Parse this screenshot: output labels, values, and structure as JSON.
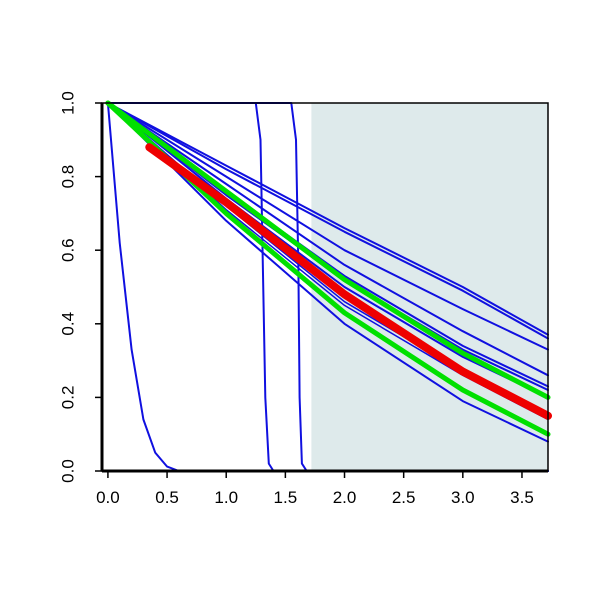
{
  "chart_data": {
    "type": "line",
    "title": "",
    "xlabel": "",
    "ylabel": "",
    "xlim": [
      -0.05,
      3.72
    ],
    "ylim": [
      0.0,
      1.0
    ],
    "grid": false,
    "legend": "none",
    "x_ticks": [
      "0.0",
      "0.5",
      "1.0",
      "1.5",
      "2.0",
      "2.5",
      "3.0",
      "3.5"
    ],
    "y_ticks": [
      "0.0",
      "0.2",
      "0.4",
      "0.6",
      "0.8",
      "1.0"
    ],
    "shaded_region": {
      "x_from": 1.72,
      "x_to": 3.72,
      "color": "#deeaeb"
    },
    "colors": {
      "blue": "#1010e0",
      "green": "#00e000",
      "red": "#ee0000",
      "shade": "#deeaeb"
    },
    "series": [
      {
        "color": "blue",
        "width": 2,
        "points": [
          [
            0,
            1.0
          ],
          [
            0.1,
            0.62
          ],
          [
            0.2,
            0.33
          ],
          [
            0.3,
            0.14
          ],
          [
            0.4,
            0.05
          ],
          [
            0.5,
            0.012
          ],
          [
            0.6,
            0.0
          ],
          [
            3.72,
            0.0
          ]
        ]
      },
      {
        "color": "blue",
        "width": 2,
        "points": [
          [
            0,
            1.0
          ],
          [
            1.25,
            1.0
          ],
          [
            1.29,
            0.9
          ],
          [
            1.31,
            0.55
          ],
          [
            1.33,
            0.2
          ],
          [
            1.36,
            0.02
          ],
          [
            1.4,
            0.0
          ],
          [
            3.72,
            0.0
          ]
        ]
      },
      {
        "color": "blue",
        "width": 2,
        "points": [
          [
            0,
            1.0
          ],
          [
            1.55,
            1.0
          ],
          [
            1.59,
            0.9
          ],
          [
            1.61,
            0.55
          ],
          [
            1.62,
            0.2
          ],
          [
            1.64,
            0.02
          ],
          [
            1.68,
            0.0
          ],
          [
            3.72,
            0.0
          ]
        ]
      },
      {
        "color": "blue",
        "width": 2,
        "points": [
          [
            0,
            1.0
          ],
          [
            1.0,
            0.83
          ],
          [
            2.0,
            0.66
          ],
          [
            3.0,
            0.5
          ],
          [
            3.72,
            0.37
          ]
        ]
      },
      {
        "color": "blue",
        "width": 2,
        "points": [
          [
            0,
            1.0
          ],
          [
            1.0,
            0.82
          ],
          [
            2.0,
            0.65
          ],
          [
            3.0,
            0.49
          ],
          [
            3.72,
            0.36
          ]
        ]
      },
      {
        "color": "blue",
        "width": 2,
        "points": [
          [
            0,
            1.0
          ],
          [
            1.0,
            0.8
          ],
          [
            2.0,
            0.6
          ],
          [
            3.0,
            0.44
          ],
          [
            3.72,
            0.33
          ]
        ]
      },
      {
        "color": "blue",
        "width": 2,
        "points": [
          [
            0,
            1.0
          ],
          [
            1.0,
            0.78
          ],
          [
            2.0,
            0.56
          ],
          [
            3.0,
            0.38
          ],
          [
            3.72,
            0.26
          ]
        ]
      },
      {
        "color": "blue",
        "width": 2,
        "points": [
          [
            0,
            1.0
          ],
          [
            1.0,
            0.76
          ],
          [
            2.0,
            0.53
          ],
          [
            3.0,
            0.34
          ],
          [
            3.72,
            0.23
          ]
        ]
      },
      {
        "color": "blue",
        "width": 2,
        "points": [
          [
            0,
            1.0
          ],
          [
            1.0,
            0.75
          ],
          [
            2.0,
            0.52
          ],
          [
            3.0,
            0.33
          ],
          [
            3.72,
            0.22
          ]
        ]
      },
      {
        "color": "blue",
        "width": 2,
        "points": [
          [
            0,
            1.0
          ],
          [
            1.0,
            0.74
          ],
          [
            2.0,
            0.5
          ],
          [
            3.0,
            0.31
          ],
          [
            3.72,
            0.2
          ]
        ]
      },
      {
        "color": "blue",
        "width": 1.5,
        "points": [
          [
            0,
            1.0
          ],
          [
            1.0,
            0.72
          ],
          [
            2.0,
            0.46
          ],
          [
            3.0,
            0.27
          ],
          [
            3.72,
            0.15
          ]
        ]
      },
      {
        "color": "blue",
        "width": 1.5,
        "points": [
          [
            0,
            1.0
          ],
          [
            1.0,
            0.71
          ],
          [
            2.0,
            0.45
          ],
          [
            3.0,
            0.26
          ],
          [
            3.72,
            0.14
          ]
        ]
      },
      {
        "color": "blue",
        "width": 2,
        "points": [
          [
            0,
            1.0
          ],
          [
            1.0,
            0.68
          ],
          [
            2.0,
            0.4
          ],
          [
            3.0,
            0.19
          ],
          [
            3.72,
            0.08
          ]
        ]
      },
      {
        "color": "green",
        "width": 5,
        "points": [
          [
            0,
            1.0
          ],
          [
            1.0,
            0.76
          ],
          [
            2.0,
            0.52
          ],
          [
            3.0,
            0.32
          ],
          [
            3.72,
            0.2
          ]
        ]
      },
      {
        "color": "green",
        "width": 5,
        "points": [
          [
            0,
            1.0
          ],
          [
            1.0,
            0.7
          ],
          [
            2.0,
            0.43
          ],
          [
            3.0,
            0.22
          ],
          [
            3.72,
            0.1
          ]
        ]
      },
      {
        "color": "red",
        "width": 8,
        "points": [
          [
            0.35,
            0.88
          ],
          [
            1.0,
            0.73
          ],
          [
            2.0,
            0.48
          ],
          [
            3.0,
            0.27
          ],
          [
            3.72,
            0.15
          ]
        ]
      }
    ]
  }
}
